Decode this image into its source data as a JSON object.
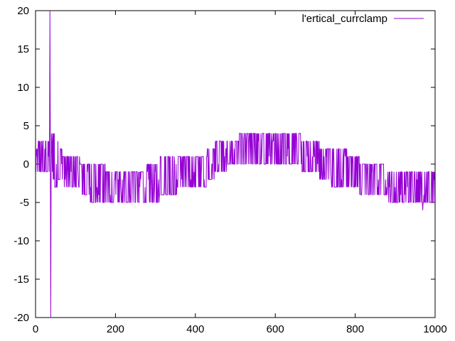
{
  "chart_data": {
    "type": "line",
    "title": "",
    "xlabel": "",
    "ylabel": "",
    "xlim": [
      0,
      1000
    ],
    "ylim": [
      -20,
      20
    ],
    "xticks": [
      0,
      200,
      400,
      600,
      800,
      1000
    ],
    "yticks": [
      -20,
      -15,
      -10,
      -5,
      0,
      5,
      10,
      15,
      20
    ],
    "grid": false,
    "legend_position": "top-right",
    "series": [
      {
        "name": "l'ertical_currclamp",
        "color": "#9400d3",
        "anchors": [
          {
            "x": 0,
            "lo": -1,
            "hi": 2
          },
          {
            "x": 10,
            "lo": -1,
            "hi": 3
          },
          {
            "x": 30,
            "lo": -1,
            "hi": 3
          },
          {
            "x": 36,
            "lo": -1,
            "hi": 3
          },
          {
            "x": 40,
            "lo": -1,
            "hi": 4
          },
          {
            "x": 50,
            "lo": -3,
            "hi": 4
          },
          {
            "x": 60,
            "lo": -2,
            "hi": 2
          },
          {
            "x": 75,
            "lo": -3,
            "hi": 1
          },
          {
            "x": 100,
            "lo": -3,
            "hi": 1
          },
          {
            "x": 120,
            "lo": -4,
            "hi": 0
          },
          {
            "x": 150,
            "lo": -5,
            "hi": 0
          },
          {
            "x": 200,
            "lo": -5,
            "hi": -1
          },
          {
            "x": 250,
            "lo": -5,
            "hi": -1
          },
          {
            "x": 290,
            "lo": -5,
            "hi": 0
          },
          {
            "x": 330,
            "lo": -4,
            "hi": 1
          },
          {
            "x": 380,
            "lo": -3,
            "hi": 1
          },
          {
            "x": 420,
            "lo": -3,
            "hi": 1
          },
          {
            "x": 440,
            "lo": -2,
            "hi": 2
          },
          {
            "x": 460,
            "lo": -1,
            "hi": 3
          },
          {
            "x": 500,
            "lo": 0,
            "hi": 3
          },
          {
            "x": 520,
            "lo": 0,
            "hi": 4
          },
          {
            "x": 600,
            "lo": 0,
            "hi": 4
          },
          {
            "x": 650,
            "lo": 0,
            "hi": 4
          },
          {
            "x": 680,
            "lo": -1,
            "hi": 3
          },
          {
            "x": 700,
            "lo": -1,
            "hi": 3
          },
          {
            "x": 720,
            "lo": -2,
            "hi": 2
          },
          {
            "x": 760,
            "lo": -3,
            "hi": 2
          },
          {
            "x": 800,
            "lo": -3,
            "hi": 1
          },
          {
            "x": 820,
            "lo": -4,
            "hi": 0
          },
          {
            "x": 860,
            "lo": -4,
            "hi": 0
          },
          {
            "x": 900,
            "lo": -5,
            "hi": -1
          },
          {
            "x": 1000,
            "lo": -5,
            "hi": -1
          }
        ],
        "spikes": [
          {
            "x": 36,
            "y": 20
          },
          {
            "x": 38,
            "y": -20
          },
          {
            "x": 969,
            "y": -6
          }
        ]
      }
    ]
  }
}
